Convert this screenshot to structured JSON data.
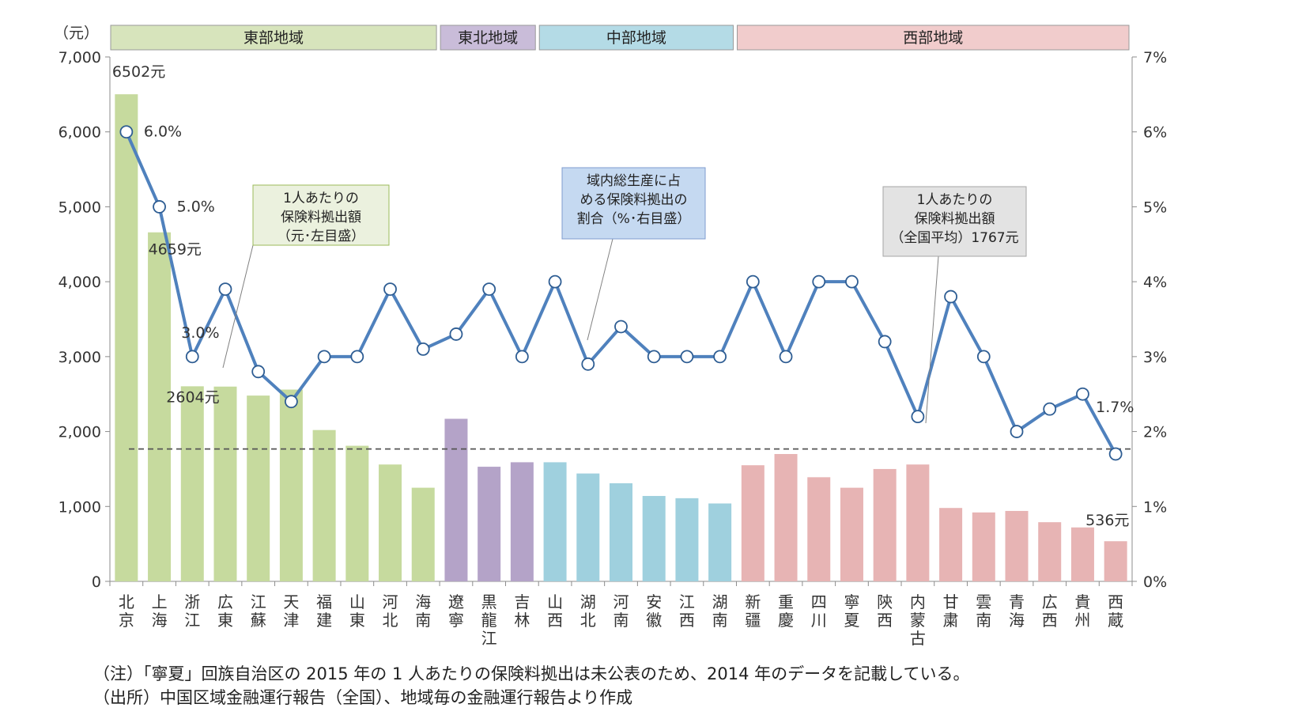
{
  "chart_data": {
    "type": "bar",
    "y_unit_label": "（元）",
    "ylim": [
      0,
      7000
    ],
    "y_ticks": [
      "0",
      "1,000",
      "2,000",
      "3,000",
      "4,000",
      "5,000",
      "6,000",
      "7,000"
    ],
    "y2lim": [
      0,
      7
    ],
    "y2_ticks": [
      "0%",
      "1%",
      "2%",
      "3%",
      "4%",
      "5%",
      "6%",
      "7%"
    ],
    "regions": [
      {
        "name": "東部地域",
        "start": 0,
        "end": 9,
        "color": "#c6da9e",
        "header_color": "#d7e4bc"
      },
      {
        "name": "東北地域",
        "start": 10,
        "end": 12,
        "color": "#b4a3c8",
        "header_color": "#c9bcd9"
      },
      {
        "name": "中部地域",
        "start": 13,
        "end": 18,
        "color": "#9fd0de",
        "header_color": "#b4dbe6"
      },
      {
        "name": "西部地域",
        "start": 19,
        "end": 30,
        "color": "#e7b4b4",
        "header_color": "#f1cccc"
      }
    ],
    "categories": [
      "北京",
      "上海",
      "浙江",
      "広東",
      "江蘇",
      "天津",
      "福建",
      "山東",
      "河北",
      "海南",
      "遼寧",
      "黒龍江",
      "吉林",
      "山西",
      "湖北",
      "河南",
      "安徽",
      "江西",
      "湖南",
      "新疆",
      "重慶",
      "四川",
      "寧夏",
      "陝西",
      "内蒙古",
      "甘粛",
      "雲南",
      "青海",
      "広西",
      "貴州",
      "西蔵"
    ],
    "series": [
      {
        "name": "1人あたりの保険料拠出額",
        "axis": "left",
        "values": [
          6502,
          4659,
          2604,
          2600,
          2480,
          2560,
          2020,
          1810,
          1560,
          1250,
          2170,
          1530,
          1590,
          1590,
          1440,
          1310,
          1140,
          1110,
          1040,
          1550,
          1700,
          1390,
          1250,
          1500,
          1560,
          980,
          920,
          940,
          790,
          720,
          536
        ]
      },
      {
        "name": "域内総生産に占める保険料拠出の割合",
        "axis": "right",
        "color": "#4f81bd",
        "values": [
          6.0,
          5.0,
          3.0,
          3.9,
          2.8,
          2.4,
          3.0,
          3.0,
          3.9,
          3.1,
          3.3,
          3.9,
          3.0,
          4.0,
          2.9,
          3.4,
          3.0,
          3.0,
          3.0,
          4.0,
          3.0,
          4.0,
          4.0,
          3.2,
          2.2,
          3.8,
          3.0,
          2.0,
          2.3,
          2.5,
          1.7
        ]
      }
    ],
    "average": {
      "value": 1767
    },
    "data_labels": [
      {
        "text": "6502元",
        "index": 0,
        "series": 0
      },
      {
        "text": "4659元",
        "index": 1,
        "series": 0
      },
      {
        "text": "2604元",
        "index": 2,
        "series": 0
      },
      {
        "text": "536元",
        "index": 30,
        "series": 0
      },
      {
        "text": "6.0%",
        "index": 0,
        "series": 1
      },
      {
        "text": "5.0%",
        "index": 1,
        "series": 1
      },
      {
        "text": "3.0%",
        "index": 2,
        "series": 1
      },
      {
        "text": "1.7%",
        "index": 30,
        "series": 1
      }
    ],
    "callouts": [
      {
        "id": "bar",
        "lines": [
          "1人あたりの",
          "保険料拠出額",
          "（元･左目盛）"
        ],
        "bg": "#ebf1de",
        "border": "#9bbb59"
      },
      {
        "id": "line",
        "lines": [
          "域内総生産に占",
          "める保険料拠出の",
          "割合（%･右目盛）"
        ],
        "bg": "#c5d9f1",
        "border": "#7f9ccf"
      },
      {
        "id": "avg",
        "lines": [
          "1人あたりの",
          "保険料拠出額",
          "（全国平均）1767元"
        ],
        "bg": "#e3e3e3",
        "border": "#a6a6a6"
      }
    ],
    "grid": false
  },
  "notes": [
    "（注）「寧夏」回族自治区の 2015 年の 1 人あたりの保険料拠出は未公表のため、2014 年のデータを記載している。",
    "（出所）中国区域金融運行報告（全国）、地域毎の金融運行報告より作成"
  ]
}
